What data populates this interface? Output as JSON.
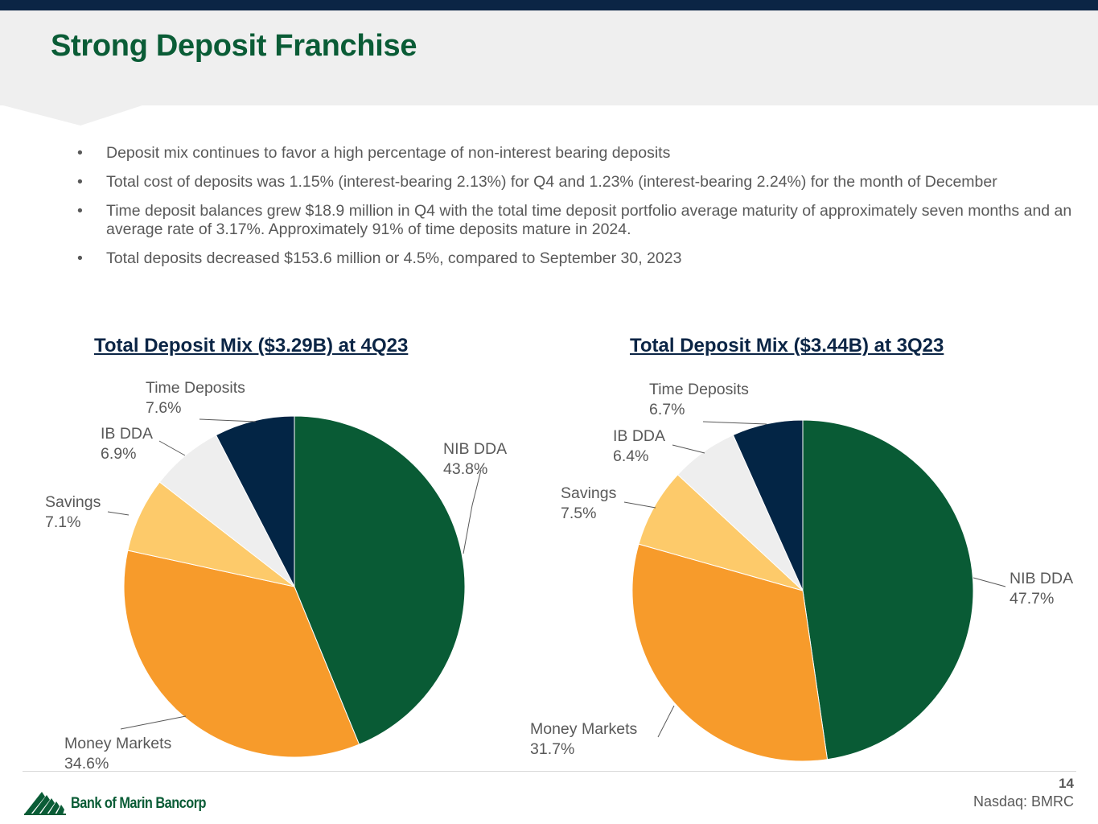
{
  "slide": {
    "title": "Strong Deposit Franchise",
    "bullets": [
      "Deposit mix continues to favor a high percentage of non-interest bearing deposits",
      "Total cost of deposits was 1.15% (interest-bearing 2.13%) for Q4 and 1.23% (interest-bearing 2.24%) for the month of December",
      "Time deposit balances grew $18.9 million in Q4 with the total time deposit portfolio average maturity of approximately seven months and an average rate of 3.17%.  Approximately 91% of time deposits mature in 2024.",
      "Total deposits decreased $153.6 million or 4.5%, compared to September 30, 2023"
    ],
    "bullet_glyph": "•"
  },
  "colors": {
    "NIB DDA": "#095b35",
    "Money Markets": "#f79b2b",
    "Savings": "#fdca6a",
    "IB DDA": "#eeeeee",
    "Time Deposits": "#032545"
  },
  "chart_data": [
    {
      "type": "pie",
      "title": "Total Deposit Mix ($3.29B) at 4Q23",
      "categories": [
        "NIB DDA",
        "Money Markets",
        "Savings",
        "IB DDA",
        "Time Deposits"
      ],
      "values": [
        43.8,
        34.6,
        7.1,
        6.9,
        7.6
      ],
      "labels": [
        "43.8%",
        "34.6%",
        "7.1%",
        "6.9%",
        "7.6%"
      ],
      "start": "12 o'clock, clockwise"
    },
    {
      "type": "pie",
      "title": "Total Deposit Mix ($3.44B) at 3Q23",
      "categories": [
        "NIB DDA",
        "Money Markets",
        "Savings",
        "IB DDA",
        "Time Deposits"
      ],
      "values": [
        47.7,
        31.7,
        7.5,
        6.4,
        6.7
      ],
      "labels": [
        "47.7%",
        "31.7%",
        "7.5%",
        "6.4%",
        "6.7%"
      ],
      "start": "12 o'clock, clockwise"
    }
  ],
  "footer": {
    "page_number": "14",
    "ticker": "Nasdaq: BMRC",
    "logo_text": "Bank of Marin Bancorp"
  }
}
